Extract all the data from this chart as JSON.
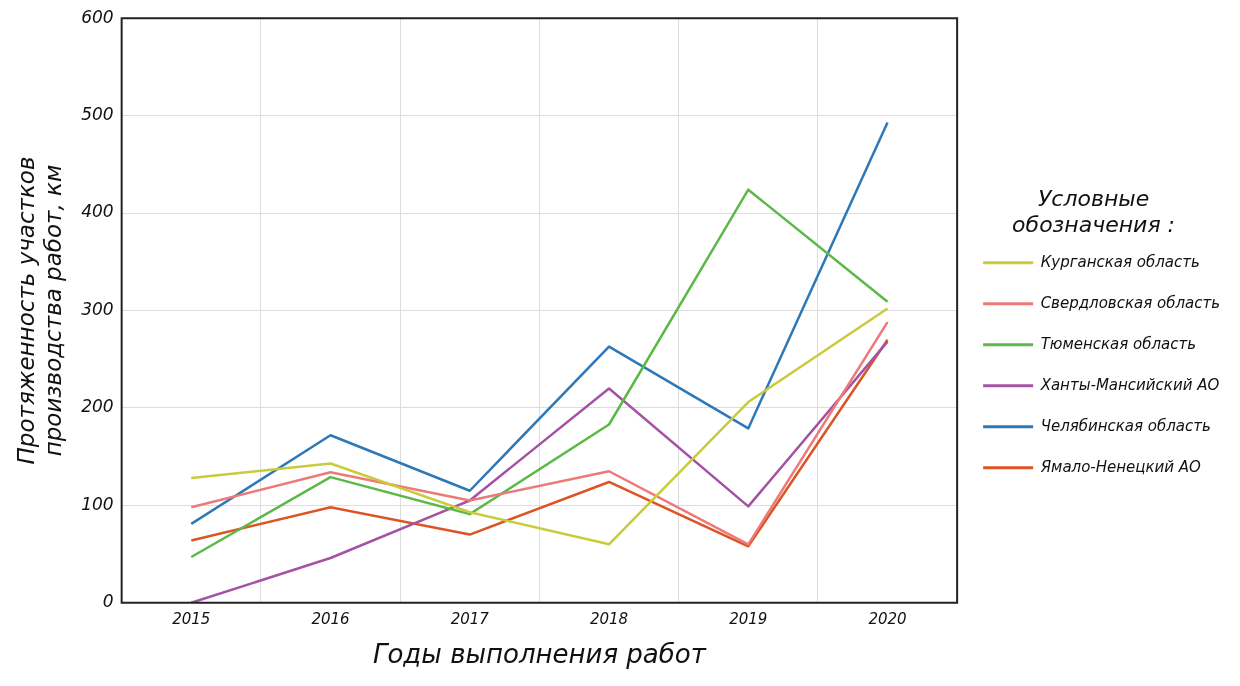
{
  "chart_data": {
    "type": "line",
    "xlabel": "Годы выполнения работ",
    "ylabel": "Протяженность участков производства работ, км",
    "legend_title": "Условные обозначения :",
    "categories": [
      "2015",
      "2016",
      "2017",
      "2018",
      "2019",
      "2020"
    ],
    "series": [
      {
        "name": "Курганская область",
        "color": "#c8cc3a",
        "values": [
          128,
          143,
          93,
          60,
          206,
          302
        ]
      },
      {
        "name": "Свердловская область",
        "color": "#ec7a78",
        "values": [
          98,
          134,
          105,
          135,
          60,
          288
        ]
      },
      {
        "name": "Тюменская область",
        "color": "#5cb848",
        "values": [
          47,
          129,
          91,
          183,
          424,
          309
        ]
      },
      {
        "name": "Ханты-Мансийский АО",
        "color": "#a452a4",
        "values": [
          0,
          46,
          105,
          220,
          99,
          268
        ]
      },
      {
        "name": "Челябинская область",
        "color": "#2e78b8",
        "values": [
          81,
          172,
          115,
          263,
          179,
          493
        ]
      },
      {
        "name": "Ямало-Ненецкий АО",
        "color": "#dc5424",
        "values": [
          64,
          98,
          70,
          124,
          58,
          270
        ]
      }
    ],
    "ylim": [
      0,
      600
    ],
    "yticks": [
      0,
      100,
      200,
      300,
      400,
      500,
      600
    ],
    "grid": true,
    "legend": "right",
    "marker": "none",
    "line_style": "solid"
  }
}
